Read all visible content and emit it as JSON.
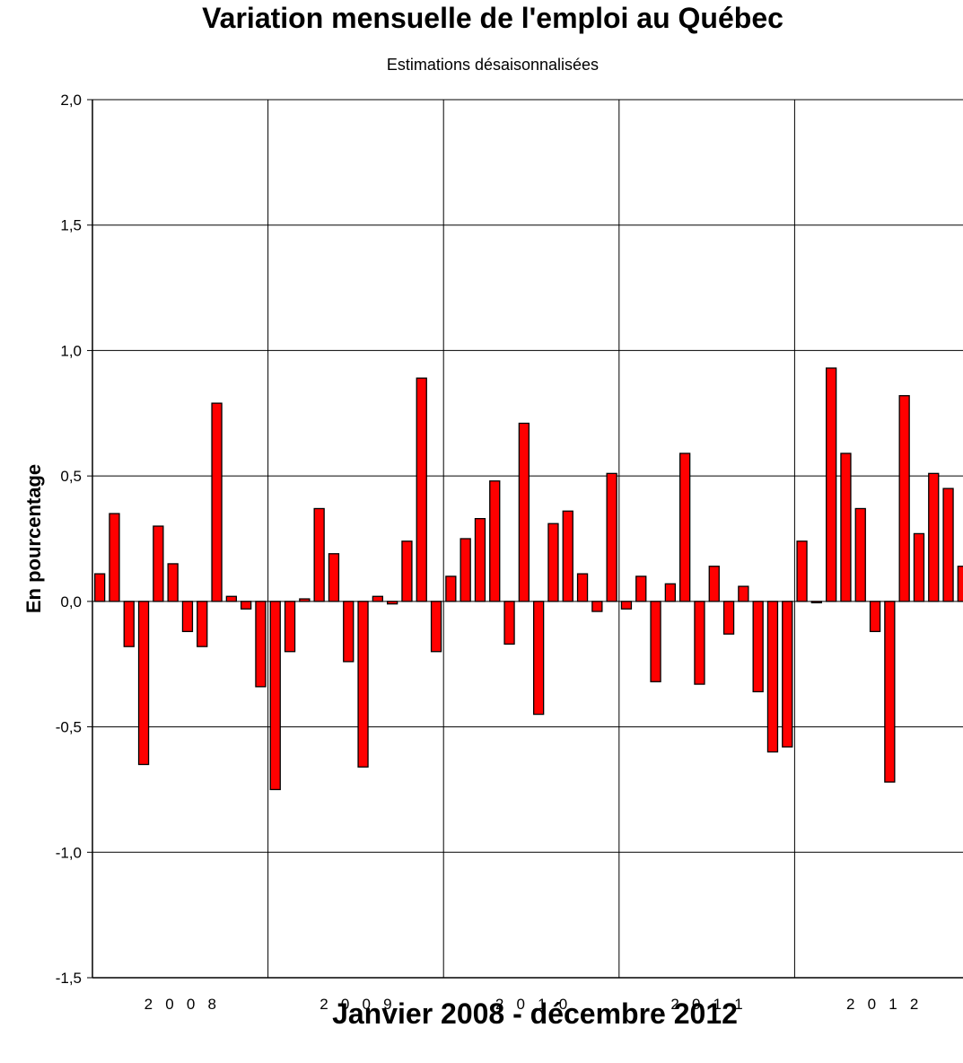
{
  "chart_data": {
    "type": "bar",
    "title": "Variation mensuelle de l'emploi au Québec",
    "subtitle": "Estimations désaisonnalisées",
    "xlabel": "Janvier 2008 - décembre 2012",
    "ylabel": "En pourcentage",
    "ylim": [
      -1.5,
      2.0
    ],
    "yticks": [
      "2,0",
      "1,5",
      "1,0",
      "0,5",
      "0,0",
      "-0,5",
      "-1,0",
      "-1,5"
    ],
    "ytick_values": [
      2.0,
      1.5,
      1.0,
      0.5,
      0.0,
      -0.5,
      -1.0,
      -1.5
    ],
    "year_labels": [
      "2 0 0 8",
      "2 0 0 9",
      "2 0 1 0",
      "2 0 1 1",
      "2 0 1 2"
    ],
    "grid": true,
    "bar_color": "#ff0000",
    "series": [
      {
        "values": [
          0.11,
          0.35,
          -0.18,
          -0.65,
          0.3,
          0.15,
          -0.12,
          -0.18,
          0.79,
          0.02,
          -0.03,
          -0.34,
          -0.75,
          -0.2,
          0.01,
          0.37,
          0.19,
          -0.24,
          -0.66,
          0.02,
          -0.01,
          0.24,
          0.89,
          -0.2,
          0.1,
          0.25,
          0.33,
          0.48,
          -0.17,
          0.71,
          -0.45,
          0.31,
          0.36,
          0.11,
          -0.04,
          0.51,
          -0.03,
          0.1,
          -0.32,
          0.07,
          0.59,
          -0.33,
          0.14,
          -0.13,
          0.06,
          -0.36,
          -0.6,
          -0.58,
          0.24,
          0.0,
          0.93,
          0.59,
          0.37,
          -0.12,
          -0.72,
          0.82,
          0.27,
          0.51,
          0.45,
          0.14
        ]
      }
    ]
  }
}
